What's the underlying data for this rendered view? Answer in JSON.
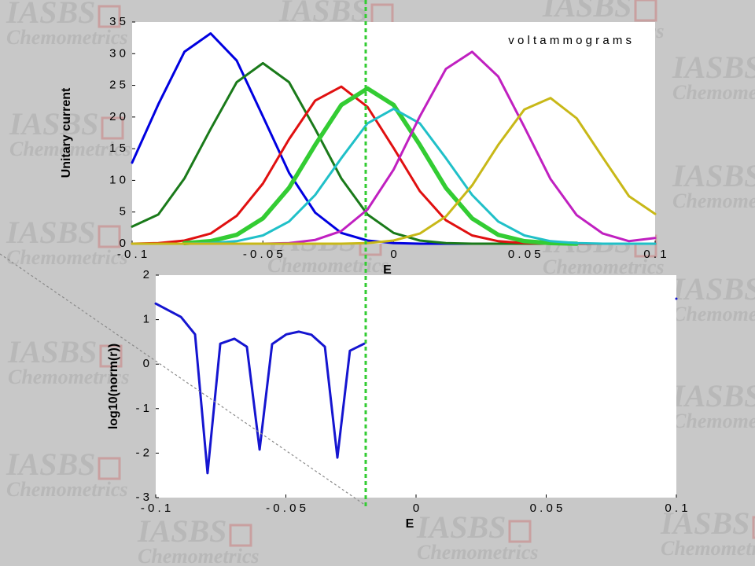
{
  "watermark": {
    "line1": "IASBS",
    "line2": "Chemometrics"
  },
  "chart_data": [
    {
      "type": "line",
      "title": "v o l t a m m o g r a m s",
      "xlabel": "E",
      "ylabel": "Unitary current",
      "x": [
        -0.1,
        -0.09,
        -0.08,
        -0.07,
        -0.06,
        -0.05,
        -0.04,
        -0.03,
        -0.02,
        -0.01,
        0,
        0.01,
        0.02,
        0.03,
        0.04,
        0.05,
        0.06,
        0.07,
        0.08,
        0.09,
        0.1
      ],
      "series": [
        {
          "color": "#0000e0",
          "values": [
            12.8,
            22.0,
            30.3,
            33.2,
            28.9,
            20.1,
            11.2,
            4.9,
            1.7,
            0.5,
            0.1,
            0,
            0,
            0,
            0,
            0,
            0,
            0,
            0,
            0,
            0
          ]
        },
        {
          "color": "#1a7a1a",
          "values": [
            2.7,
            4.6,
            10.3,
            18.1,
            25.5,
            28.5,
            25.5,
            18.1,
            10.3,
            4.6,
            1.7,
            0.5,
            0.1,
            0,
            0,
            0,
            0,
            0,
            0,
            0,
            0
          ]
        },
        {
          "color": "#e01010",
          "values": [
            0,
            0.1,
            0.5,
            1.6,
            4.4,
            9.5,
            16.5,
            22.6,
            24.8,
            21.6,
            15.1,
            8.3,
            3.7,
            1.3,
            0.4,
            0.1,
            0,
            0,
            0,
            0,
            0
          ]
        },
        {
          "color": "#33cc33",
          "values": [
            null,
            null,
            0.1,
            0.4,
            1.4,
            4.0,
            8.8,
            15.6,
            21.9,
            24.5,
            21.9,
            15.6,
            8.8,
            4.0,
            1.4,
            0.4,
            0.1,
            0,
            null,
            null,
            null
          ]
        },
        {
          "color": "#20c0c8",
          "values": [
            0,
            0,
            0,
            0.1,
            0.4,
            1.3,
            3.5,
            7.7,
            13.5,
            19.0,
            21.3,
            19.0,
            13.5,
            7.7,
            3.5,
            1.3,
            0.4,
            0.1,
            0,
            0,
            0
          ]
        },
        {
          "color": "#c020c0",
          "values": [
            0,
            0,
            0,
            0,
            0,
            0,
            0.1,
            0.6,
            2.0,
            5.4,
            11.7,
            20.1,
            27.6,
            30.3,
            26.4,
            18.4,
            10.2,
            4.5,
            1.6,
            0.4,
            0.9
          ]
        },
        {
          "color": "#c8b818",
          "values": [
            0,
            0,
            0,
            0,
            0,
            0,
            0,
            0,
            0,
            0.1,
            0.5,
            1.6,
            4.3,
            9.2,
            15.6,
            21.2,
            23.0,
            19.8,
            13.6,
            7.5,
            4.7
          ]
        }
      ],
      "xlim": [
        -0.1,
        0.1
      ],
      "ylim": [
        0,
        35
      ],
      "xticks": [
        {
          "value": -0.1,
          "label": "- 0 . 1"
        },
        {
          "value": -0.05,
          "label": "- 0 . 0 5"
        },
        0,
        {
          "value": 0.05,
          "label": "0 . 0 5"
        },
        {
          "value": 0.1,
          "label": "0 . 1"
        }
      ],
      "yticks": [
        0,
        {
          "value": 5,
          "label": "5"
        },
        {
          "value": 10,
          "label": "1 0"
        },
        {
          "value": 15,
          "label": "1 5"
        },
        {
          "value": 20,
          "label": "2 0"
        },
        {
          "value": 25,
          "label": "2 5"
        },
        {
          "value": 30,
          "label": "3 0"
        },
        {
          "value": 35,
          "label": "3 5"
        }
      ]
    },
    {
      "type": "line",
      "xlabel": "E",
      "ylabel": "log10(norm(r))",
      "x": [
        -0.1,
        -0.0903,
        -0.0849,
        -0.0801,
        -0.0752,
        -0.0698,
        -0.065,
        -0.0601,
        -0.0553,
        -0.0498,
        -0.045,
        -0.0402,
        -0.035,
        -0.0302,
        -0.0254,
        -0.0199,
        0.05,
        0.1
      ],
      "series": [
        {
          "color": "#1515d0",
          "values": [
            1.36,
            1.06,
            0.67,
            -2.45,
            0.46,
            0.57,
            0.39,
            -1.92,
            0.45,
            0.67,
            0.73,
            0.66,
            0.39,
            -2.1,
            0.3,
            0.46,
            null,
            1.47
          ]
        }
      ],
      "xlim": [
        -0.1,
        0.1
      ],
      "ylim": [
        -3,
        2
      ],
      "xticks": [
        {
          "value": -0.1,
          "label": "- 0 . 1"
        },
        {
          "value": -0.05,
          "label": "- 0 . 0 5"
        },
        0,
        {
          "value": 0.05,
          "label": "0 . 0 5"
        },
        {
          "value": 0.1,
          "label": "0 . 1"
        }
      ],
      "yticks": [
        2,
        1,
        0,
        {
          "value": -1,
          "label": "- 1"
        },
        {
          "value": -2,
          "label": "- 2"
        },
        {
          "value": -3,
          "label": "- 3"
        }
      ]
    }
  ]
}
